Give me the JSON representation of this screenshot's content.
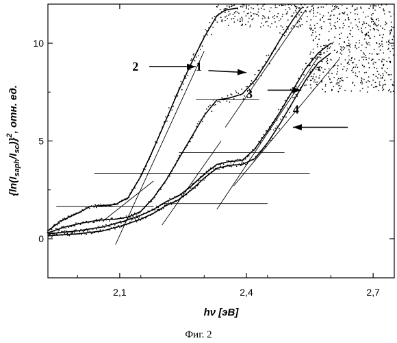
{
  "chart_data": {
    "type": "scatter",
    "xlabel": "hν [эВ]",
    "ylabel": "{ln(I_saph/I_sc)}², отн. ед.",
    "ylabel_main": "{ln(I",
    "ylabel_sub1": "saph",
    "ylabel_mid": "/I",
    "ylabel_sub2": "sc",
    "ylabel_close": ")}",
    "ylabel_sup": "2",
    "ylabel_tail": ", отн. ед.",
    "xlim": [
      1.93,
      2.75
    ],
    "ylim": [
      -2,
      12
    ],
    "x_ticks": [
      2.1,
      2.4,
      2.7
    ],
    "x_tick_labels": [
      "2,1",
      "2,4",
      "2,7"
    ],
    "y_ticks": [
      0,
      5,
      10
    ],
    "y_tick_labels": [
      "0",
      "5",
      "10"
    ],
    "caption": "Фиг. 2",
    "series": [
      {
        "name": "2",
        "x": [
          1.93,
          1.96,
          2.0,
          2.03,
          2.06,
          2.09,
          2.12,
          2.15,
          2.18,
          2.21,
          2.24,
          2.27,
          2.3,
          2.33,
          2.35,
          2.38
        ],
        "y": [
          0.4,
          0.9,
          1.3,
          1.65,
          1.7,
          1.75,
          2.1,
          3.2,
          4.6,
          6.1,
          7.6,
          9.0,
          10.3,
          11.4,
          11.7,
          11.8
        ]
      },
      {
        "name": "1",
        "x": [
          1.93,
          1.97,
          2.01,
          2.05,
          2.09,
          2.12,
          2.15,
          2.18,
          2.21,
          2.24,
          2.27,
          2.3,
          2.33,
          2.36,
          2.39,
          2.42,
          2.45,
          2.48,
          2.51,
          2.53
        ],
        "y": [
          0.3,
          0.6,
          0.8,
          0.95,
          1.0,
          1.1,
          1.4,
          2.1,
          3.0,
          4.1,
          5.2,
          6.3,
          7.1,
          7.2,
          7.4,
          8.1,
          9.1,
          10.2,
          11.2,
          11.8
        ]
      },
      {
        "name": "3",
        "x": [
          1.93,
          2.0,
          2.06,
          2.11,
          2.15,
          2.18,
          2.21,
          2.24,
          2.27,
          2.3,
          2.33,
          2.36,
          2.39,
          2.42,
          2.45,
          2.48,
          2.51,
          2.54,
          2.57,
          2.6
        ],
        "y": [
          0.25,
          0.4,
          0.6,
          0.9,
          1.2,
          1.5,
          1.9,
          2.2,
          2.7,
          3.3,
          3.8,
          3.95,
          4.0,
          4.6,
          5.5,
          6.5,
          7.6,
          8.7,
          9.5,
          10.0
        ]
      },
      {
        "name": "4",
        "x": [
          1.93,
          2.0,
          2.06,
          2.11,
          2.15,
          2.18,
          2.21,
          2.24,
          2.27,
          2.3,
          2.33,
          2.36,
          2.39,
          2.42,
          2.45,
          2.48,
          2.51,
          2.54,
          2.57,
          2.6
        ],
        "y": [
          0.15,
          0.25,
          0.4,
          0.7,
          1.0,
          1.3,
          1.7,
          2.0,
          2.5,
          3.1,
          3.6,
          3.75,
          3.8,
          4.1,
          4.9,
          5.9,
          7.0,
          8.1,
          9.0,
          9.5
        ]
      }
    ],
    "noise_region": {
      "x": [
        2.55,
        2.75
      ],
      "y": [
        7.5,
        12
      ]
    },
    "fit_lines": [
      {
        "x": [
          1.95,
          2.18
        ],
        "y": [
          1.65,
          1.65
        ]
      },
      {
        "x": [
          2.06,
          2.18
        ],
        "y": [
          0.9,
          2.95
        ]
      },
      {
        "x": [
          2.09,
          2.3
        ],
        "y": [
          -0.3,
          9.6
        ]
      },
      {
        "x": [
          2.2,
          2.45
        ],
        "y": [
          1.8,
          1.8
        ]
      },
      {
        "x": [
          2.2,
          2.34
        ],
        "y": [
          0.7,
          5.0
        ]
      },
      {
        "x": [
          2.04,
          2.55
        ],
        "y": [
          3.35,
          3.35
        ]
      },
      {
        "x": [
          2.28,
          2.43
        ],
        "y": [
          7.1,
          7.1
        ]
      },
      {
        "x": [
          2.35,
          2.54
        ],
        "y": [
          5.7,
          11.7
        ]
      },
      {
        "x": [
          2.24,
          2.49
        ],
        "y": [
          4.4,
          4.4
        ]
      },
      {
        "x": [
          2.33,
          2.57
        ],
        "y": [
          1.5,
          9.3
        ]
      },
      {
        "x": [
          2.37,
          2.62
        ],
        "y": [
          2.7,
          9.2
        ]
      }
    ],
    "annotations": [
      {
        "text": "2",
        "label_at": [
          2.13,
          8.6
        ],
        "arrow_from": [
          2.17,
          8.8
        ],
        "arrow_to": [
          2.28,
          8.8
        ]
      },
      {
        "text": "1",
        "label_at": [
          2.28,
          8.6
        ],
        "arrow_from": [
          2.31,
          8.6
        ],
        "arrow_to": [
          2.4,
          8.5
        ]
      },
      {
        "text": "3",
        "label_at": [
          2.4,
          7.2
        ],
        "arrow_from": [
          2.45,
          7.6
        ],
        "arrow_to": [
          2.53,
          7.6
        ]
      },
      {
        "text": "4",
        "label_at": [
          2.51,
          6.4
        ],
        "arrow_from": [
          2.64,
          5.7
        ],
        "arrow_to": [
          2.51,
          5.7
        ]
      }
    ]
  }
}
